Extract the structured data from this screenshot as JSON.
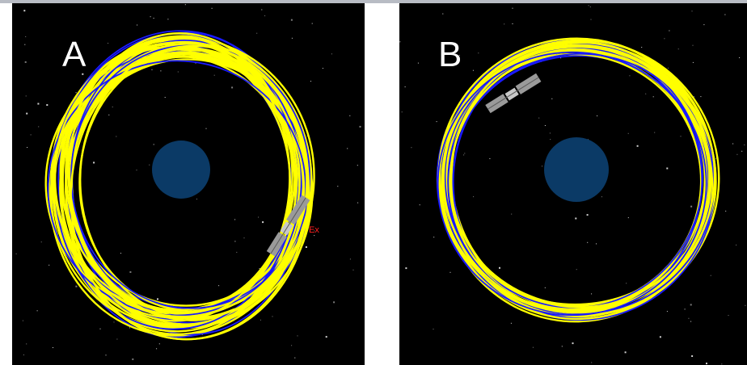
{
  "panels": [
    {
      "label": "A",
      "marker": "Ex"
    },
    {
      "label": "B"
    }
  ],
  "colors": {
    "background": "#000000",
    "planet": "#0b3a66",
    "orbit_primary": "#ffff00",
    "orbit_secondary": "#1a1aff",
    "marker": "#ff2020",
    "satellite": "#9a9a9a"
  },
  "icons": [
    "planet-icon",
    "satellite-icon",
    "orbit-track-icon",
    "star-field"
  ]
}
